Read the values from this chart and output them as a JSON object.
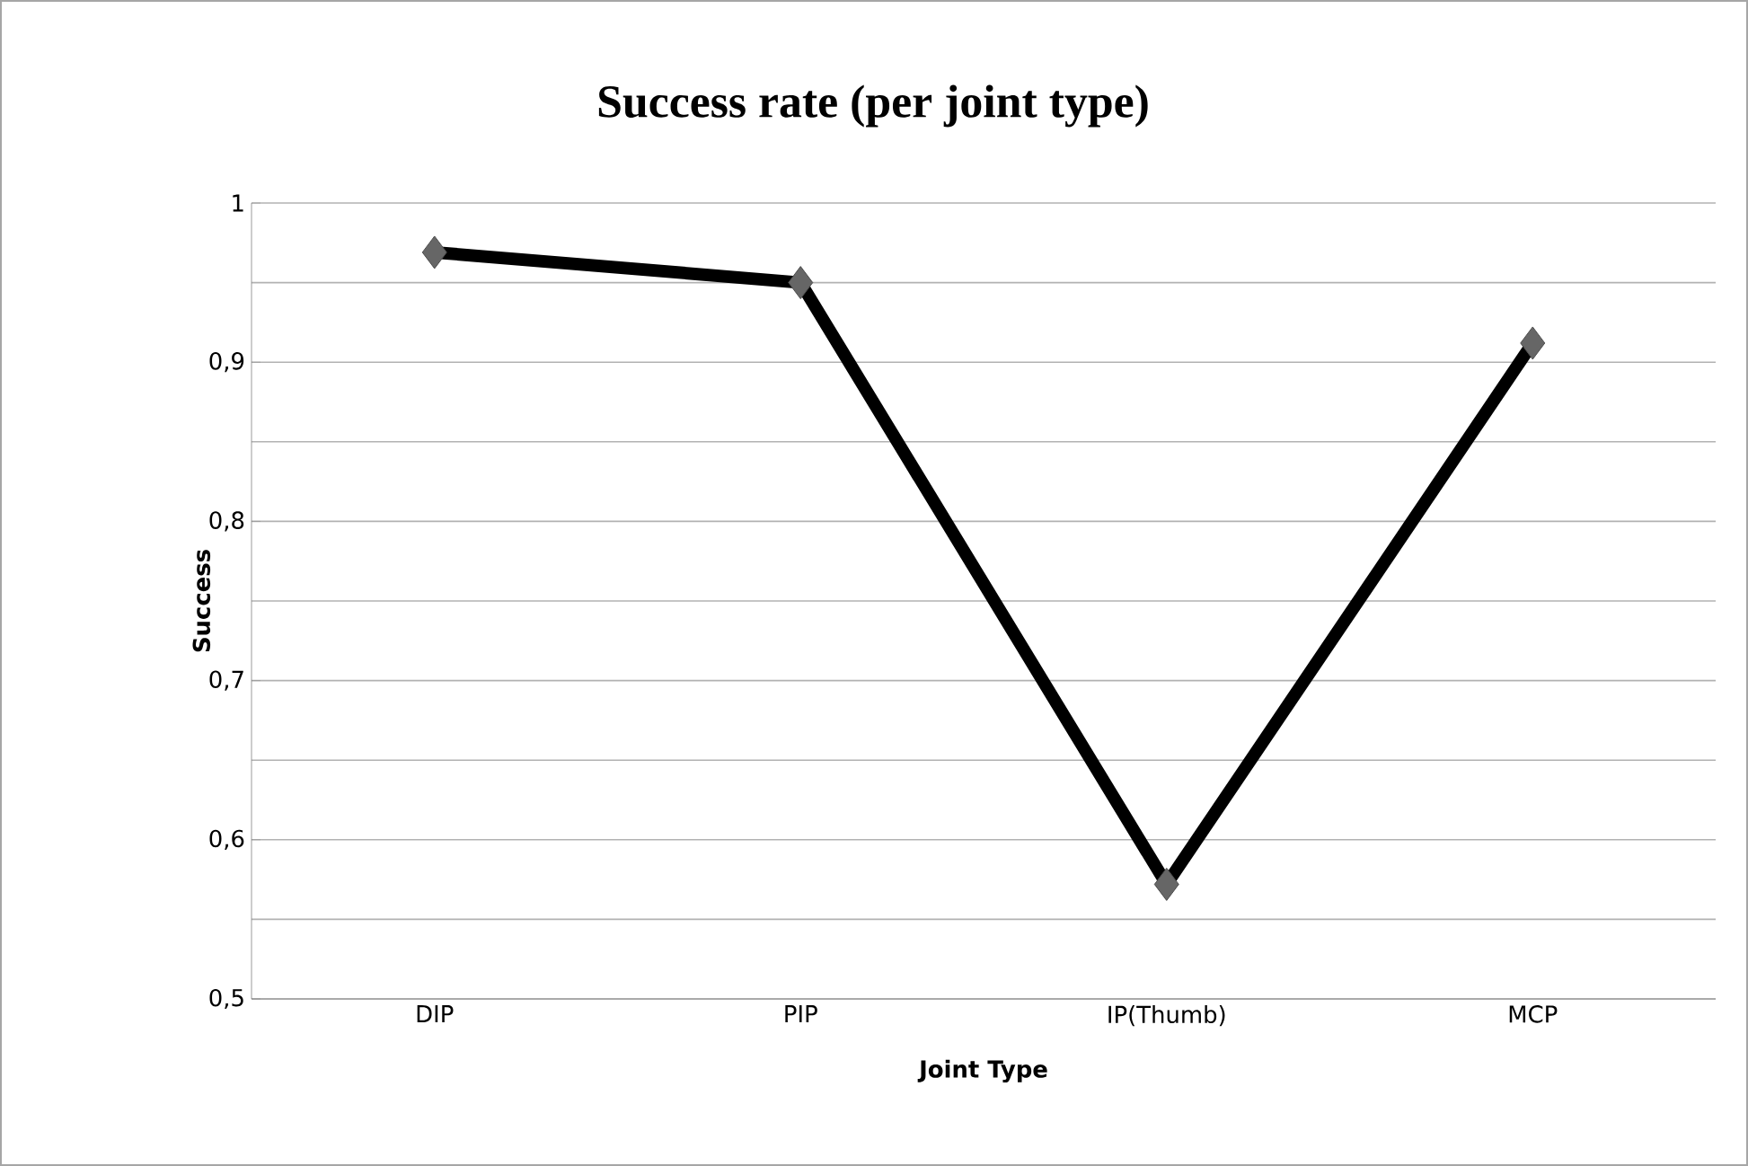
{
  "chart_data": {
    "type": "line",
    "title": "Success rate (per joint type)",
    "xlabel": "Joint Type",
    "ylabel": "Success",
    "categories": [
      "DIP",
      "PIP",
      "IP(Thumb)",
      "MCP"
    ],
    "series": [
      {
        "color": "#000000",
        "values": [
          0.969,
          0.95,
          0.572,
          0.912
        ]
      }
    ],
    "marker": "diamond",
    "line_style": "solid",
    "ylim": [
      0.5,
      1
    ],
    "yticks": [
      {
        "value": 0.5,
        "label": "0,5"
      },
      {
        "value": 0.6,
        "label": "0,6"
      },
      {
        "value": 0.7,
        "label": "0,7"
      },
      {
        "value": 0.8,
        "label": "0,8"
      },
      {
        "value": 0.9,
        "label": "0,9"
      },
      1
    ],
    "grid": "y"
  }
}
